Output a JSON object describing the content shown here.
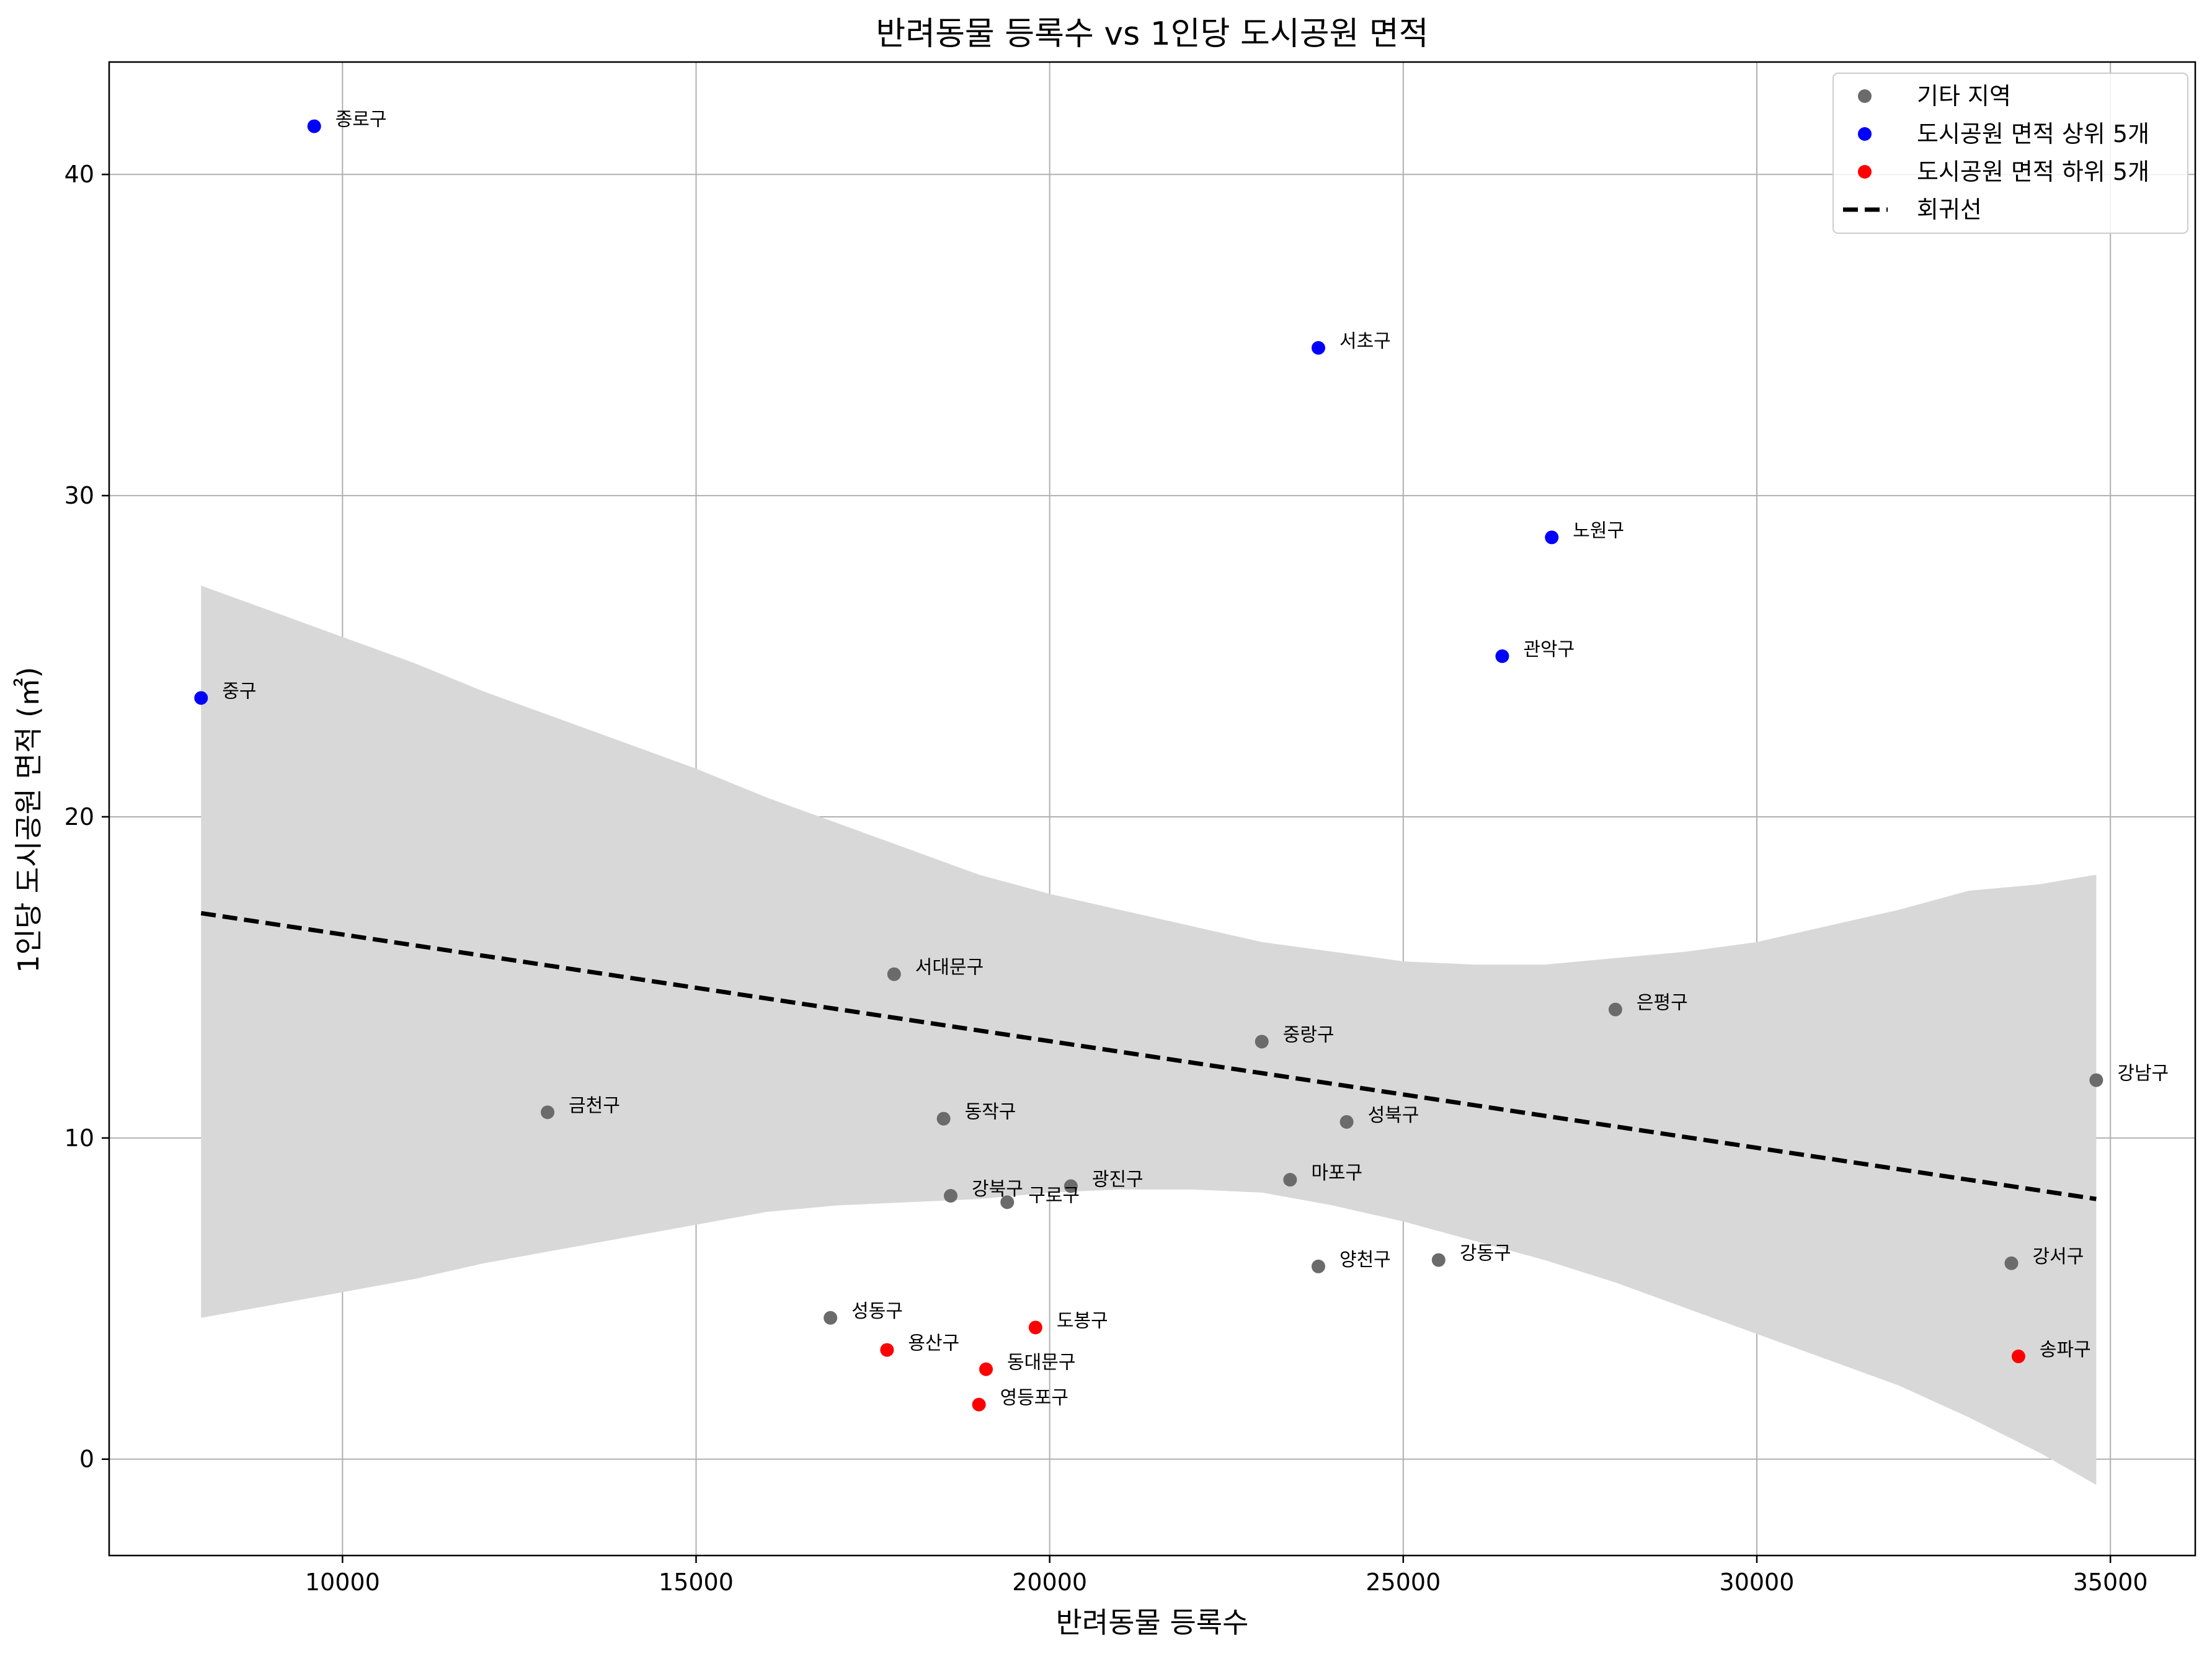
{
  "chart_data": {
    "type": "scatter",
    "title": "반려동물 등록수 vs 1인당 도시공원 면적",
    "xlabel": "반려동물 등록수",
    "ylabel": "1인당 도시공원 면적 (㎡)",
    "xlim": [
      6700,
      36200
    ],
    "ylim": [
      -3,
      43.5
    ],
    "xticks": [
      10000,
      15000,
      20000,
      25000,
      30000,
      35000
    ],
    "yticks": [
      0,
      10,
      20,
      30,
      40
    ],
    "grid": true,
    "legend_position": "top-right",
    "series": [
      {
        "name": "기타 지역",
        "color": "#6b6b6b",
        "points": [
          {
            "label": "서대문구",
            "x": 17800,
            "y": 15.1
          },
          {
            "label": "은평구",
            "x": 28000,
            "y": 14.0
          },
          {
            "label": "중랑구",
            "x": 23000,
            "y": 13.0
          },
          {
            "label": "강남구",
            "x": 34800,
            "y": 11.8
          },
          {
            "label": "금천구",
            "x": 12900,
            "y": 10.8
          },
          {
            "label": "동작구",
            "x": 18500,
            "y": 10.6
          },
          {
            "label": "성북구",
            "x": 24200,
            "y": 10.5
          },
          {
            "label": "마포구",
            "x": 23400,
            "y": 8.7
          },
          {
            "label": "광진구",
            "x": 20300,
            "y": 8.5
          },
          {
            "label": "강북구",
            "x": 18600,
            "y": 8.2
          },
          {
            "label": "구로구",
            "x": 19400,
            "y": 8.0
          },
          {
            "label": "양천구",
            "x": 23800,
            "y": 6.0
          },
          {
            "label": "강동구",
            "x": 25500,
            "y": 6.2
          },
          {
            "label": "강서구",
            "x": 33600,
            "y": 6.1
          },
          {
            "label": "성동구",
            "x": 16900,
            "y": 4.4
          }
        ]
      },
      {
        "name": "도시공원 면적 상위 5개",
        "color": "#0000ff",
        "points": [
          {
            "label": "종로구",
            "x": 9600,
            "y": 41.5
          },
          {
            "label": "서초구",
            "x": 23800,
            "y": 34.6
          },
          {
            "label": "노원구",
            "x": 27100,
            "y": 28.7
          },
          {
            "label": "관악구",
            "x": 26400,
            "y": 25.0
          },
          {
            "label": "중구",
            "x": 8000,
            "y": 23.7
          }
        ]
      },
      {
        "name": "도시공원 면적 하위 5개",
        "color": "#ff0000",
        "points": [
          {
            "label": "도봉구",
            "x": 19800,
            "y": 4.1
          },
          {
            "label": "용산구",
            "x": 17700,
            "y": 3.4
          },
          {
            "label": "동대문구",
            "x": 19100,
            "y": 2.8
          },
          {
            "label": "송파구",
            "x": 33700,
            "y": 3.2
          },
          {
            "label": "영등포구",
            "x": 19000,
            "y": 1.7
          }
        ]
      }
    ],
    "regression": {
      "name": "회귀선",
      "color": "#000000",
      "style": "dashed",
      "x": [
        8000,
        34800
      ],
      "y": [
        17.0,
        8.1
      ]
    },
    "confidence_band": {
      "color": "#d8d8d8",
      "x": [
        8000,
        9000,
        10000,
        11000,
        12000,
        13000,
        14000,
        15000,
        16000,
        17000,
        18000,
        19000,
        20000,
        21000,
        22000,
        23000,
        24000,
        25000,
        26000,
        27000,
        28000,
        29000,
        30000,
        31000,
        32000,
        33000,
        34000,
        34800
      ],
      "upper": [
        27.2,
        26.4,
        25.6,
        24.8,
        23.9,
        23.1,
        22.3,
        21.5,
        20.6,
        19.8,
        19.0,
        18.2,
        17.6,
        17.1,
        16.6,
        16.1,
        15.8,
        15.5,
        15.4,
        15.4,
        15.6,
        15.8,
        16.1,
        16.6,
        17.1,
        17.7,
        17.9,
        18.2
      ],
      "lower": [
        4.4,
        4.8,
        5.2,
        5.6,
        6.1,
        6.5,
        6.9,
        7.3,
        7.7,
        7.9,
        8.0,
        8.1,
        8.3,
        8.4,
        8.4,
        8.3,
        7.9,
        7.4,
        6.8,
        6.2,
        5.5,
        4.7,
        3.9,
        3.1,
        2.3,
        1.3,
        0.2,
        -0.8
      ]
    }
  }
}
